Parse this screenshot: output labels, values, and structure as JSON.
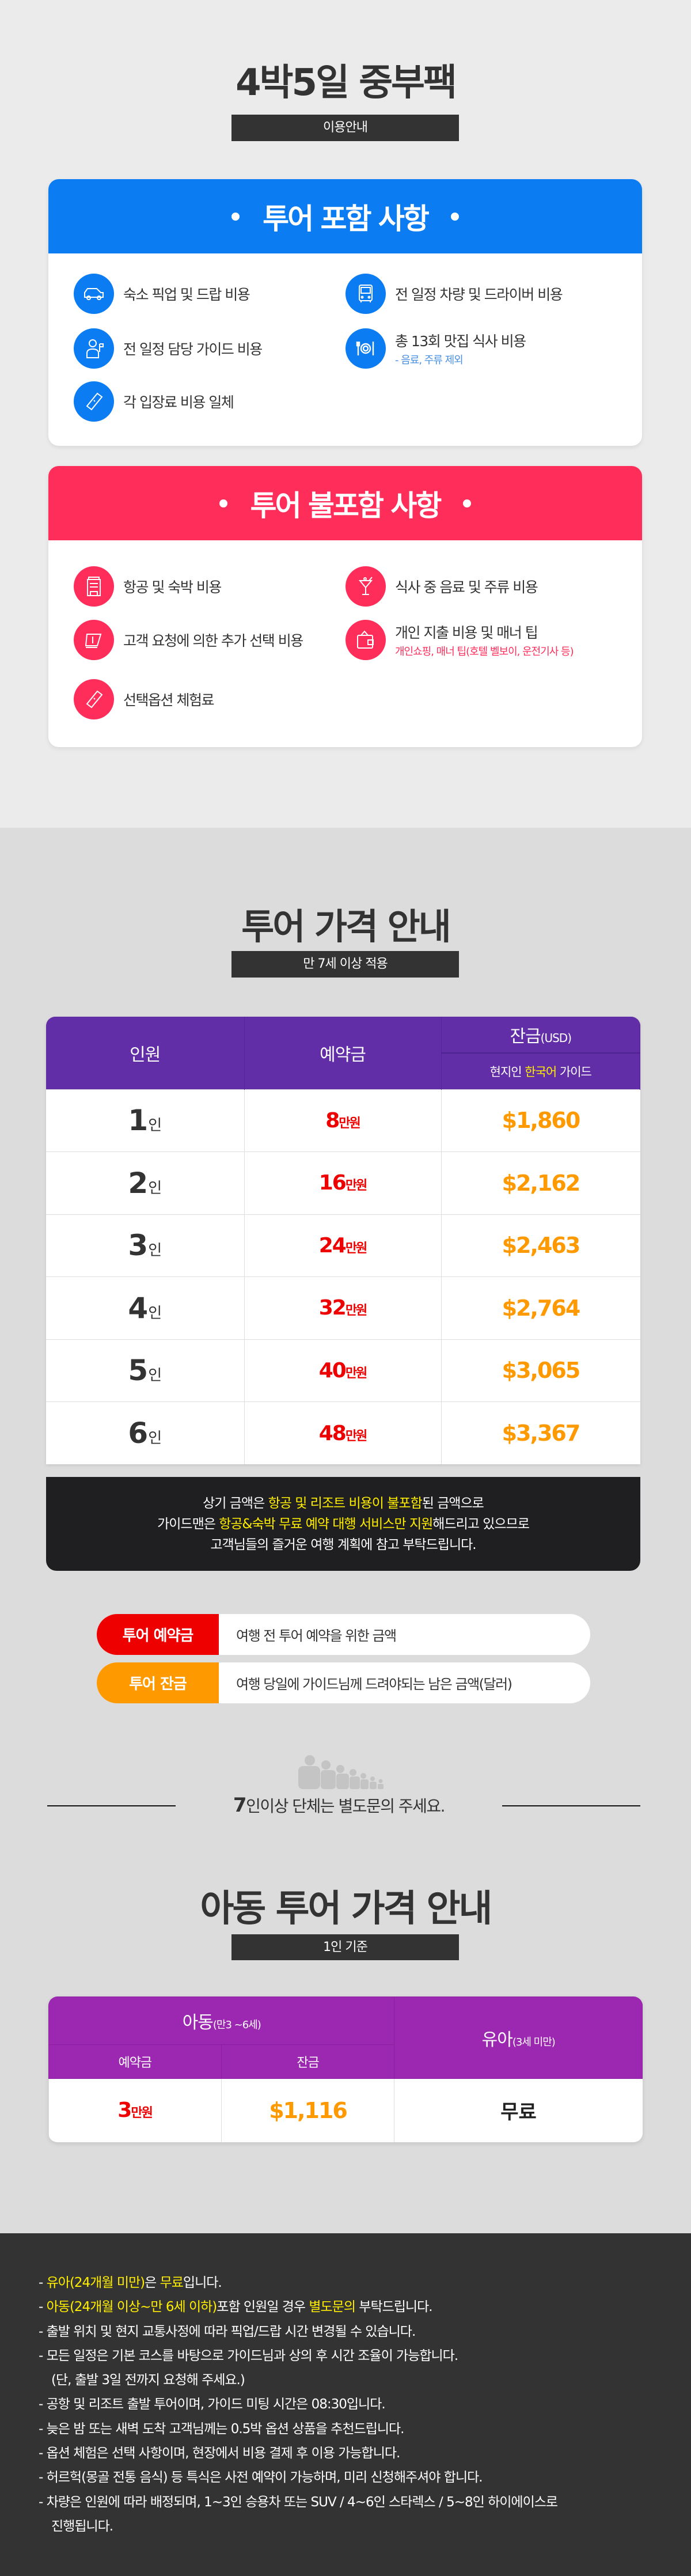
{
  "header": {
    "title": "4박5일 중부팩",
    "badge": "이용안내"
  },
  "included": {
    "title": "투어 포함 사항",
    "color": "#0b7cf2",
    "items": [
      {
        "icon": "car-icon",
        "label": "숙소 픽업 및 드랍 비용"
      },
      {
        "icon": "bus-icon",
        "label": "전 일정 차량 및 드라이버 비용"
      },
      {
        "icon": "guide-icon",
        "label": "전 일정 담당 가이드 비용"
      },
      {
        "icon": "dining-icon",
        "label": "총 13회 맛집 식사 비용",
        "sub": "- 음료, 주류 제외"
      },
      {
        "icon": "ticket-icon",
        "label": "각 입장료 비용 일체"
      }
    ]
  },
  "excluded": {
    "title": "투어 불포함 사항",
    "color": "#ff2d5a",
    "items": [
      {
        "icon": "hotel-icon",
        "label": "항공 및 숙박 비용"
      },
      {
        "icon": "cocktail-icon",
        "label": "식사 중 음료 및 주류 비용"
      },
      {
        "icon": "money-icon",
        "label": "고객 요청에 의한 추가 선택 비용"
      },
      {
        "icon": "wallet-icon",
        "label": "개인 지출 비용 및 매너 팁",
        "sub": "개인쇼핑, 매너 팁(호텔 벨보이, 운전기사 등)"
      },
      {
        "icon": "ticket-icon",
        "label": "선택옵션 체험료"
      }
    ]
  },
  "price": {
    "title": "투어 가격 안내",
    "badge": "만 7세 이상 적용",
    "headers": {
      "people": "인원",
      "deposit": "예약금",
      "balance": "잔금",
      "balance_unit": "(USD)",
      "guide_pre": "현지인 ",
      "guide_hl": "한국어",
      "guide_post": " 가이드"
    },
    "person_unit": "인",
    "deposit_unit": "만원",
    "rows": [
      {
        "people": "1",
        "deposit": "8",
        "balance": "$1,860"
      },
      {
        "people": "2",
        "deposit": "16",
        "balance": "$2,162"
      },
      {
        "people": "3",
        "deposit": "24",
        "balance": "$2,463"
      },
      {
        "people": "4",
        "deposit": "32",
        "balance": "$2,764"
      },
      {
        "people": "5",
        "deposit": "40",
        "balance": "$3,065"
      },
      {
        "people": "6",
        "deposit": "48",
        "balance": "$3,367"
      }
    ],
    "notice": {
      "l1a": "상기 금액은 ",
      "l1b": "항공 및 리조트 비용이 불포함",
      "l1c": "된 금액으로",
      "l2a": "가이드맨은 ",
      "l2b": "항공&숙박 무료 예약 대행 서비스만 지원",
      "l2c": "해드리고 있으므로",
      "l3": "고객님들의 즐거운 여행 계획에 참고 부탁드립니다."
    }
  },
  "legend": [
    {
      "label": "투어 예약금",
      "desc": "여행 전 투어 예약을 위한 금액",
      "color": "#ee0000"
    },
    {
      "label": "투어 잔금",
      "desc": "여행 당일에 가이드님께 드려야되는 남은 금액(달러)",
      "color": "#ff9900"
    }
  ],
  "group": {
    "num": "7",
    "text": "인이상 단체는 별도문의 주세요."
  },
  "child": {
    "title": "아동 투어 가격 안내",
    "badge": "1인 기준",
    "child_label": "아동",
    "child_age": "(만3 ~6세)",
    "infant_label": "유아",
    "infant_age": "(3세 미만)",
    "deposit_h": "예약금",
    "balance_h": "잔금",
    "deposit": "3",
    "deposit_unit": "만원",
    "balance": "$1,116",
    "infant_price": "무료"
  },
  "notes": [
    {
      "pre": "- ",
      "hl": "유아(24개월 미만)",
      "mid": "은 ",
      "hl2": "무료",
      "post": "입니다."
    },
    {
      "pre": "- ",
      "hl": "아동(24개월 이상~만 6세 이하)",
      "mid": "포함 인원일 경우 ",
      "hl2": "별도문의",
      "post": " 부탁드립니다."
    },
    {
      "pre": "- 출발 위치 및 현지 교통사정에 따라 픽업/드랍 시간 변경될 수 있습니다."
    },
    {
      "pre": "- 모든 일정은 기본 코스를 바탕으로 가이드님과 상의 후 시간 조율이 가능합니다."
    },
    {
      "pre": "(단, 출발 3일 전까지 요청해 주세요.)"
    },
    {
      "pre": "- 공항 및 리조트 출발 투어이며, 가이드 미팅 시간은 08:30입니다."
    },
    {
      "pre": "- 늦은 밤 또는 새벽 도착 고객님께는 0.5박 옵션 상품을 추천드립니다."
    },
    {
      "pre": "- 옵션 체험은 선택 사항이며, 현장에서 비용 결제 후 이용 가능합니다."
    },
    {
      "pre": "- 허르헉(몽골 전통 음식) 등 특식은 사전 예약이 가능하며, 미리 신청해주셔야 합니다."
    },
    {
      "pre": "- 차량은 인원에 따라 배정되며, 1~3인 승용차 또는 SUV / 4~6인 스타렉스 / 5~8인 하이에이스로"
    },
    {
      "pre": "진행됩니다."
    }
  ]
}
